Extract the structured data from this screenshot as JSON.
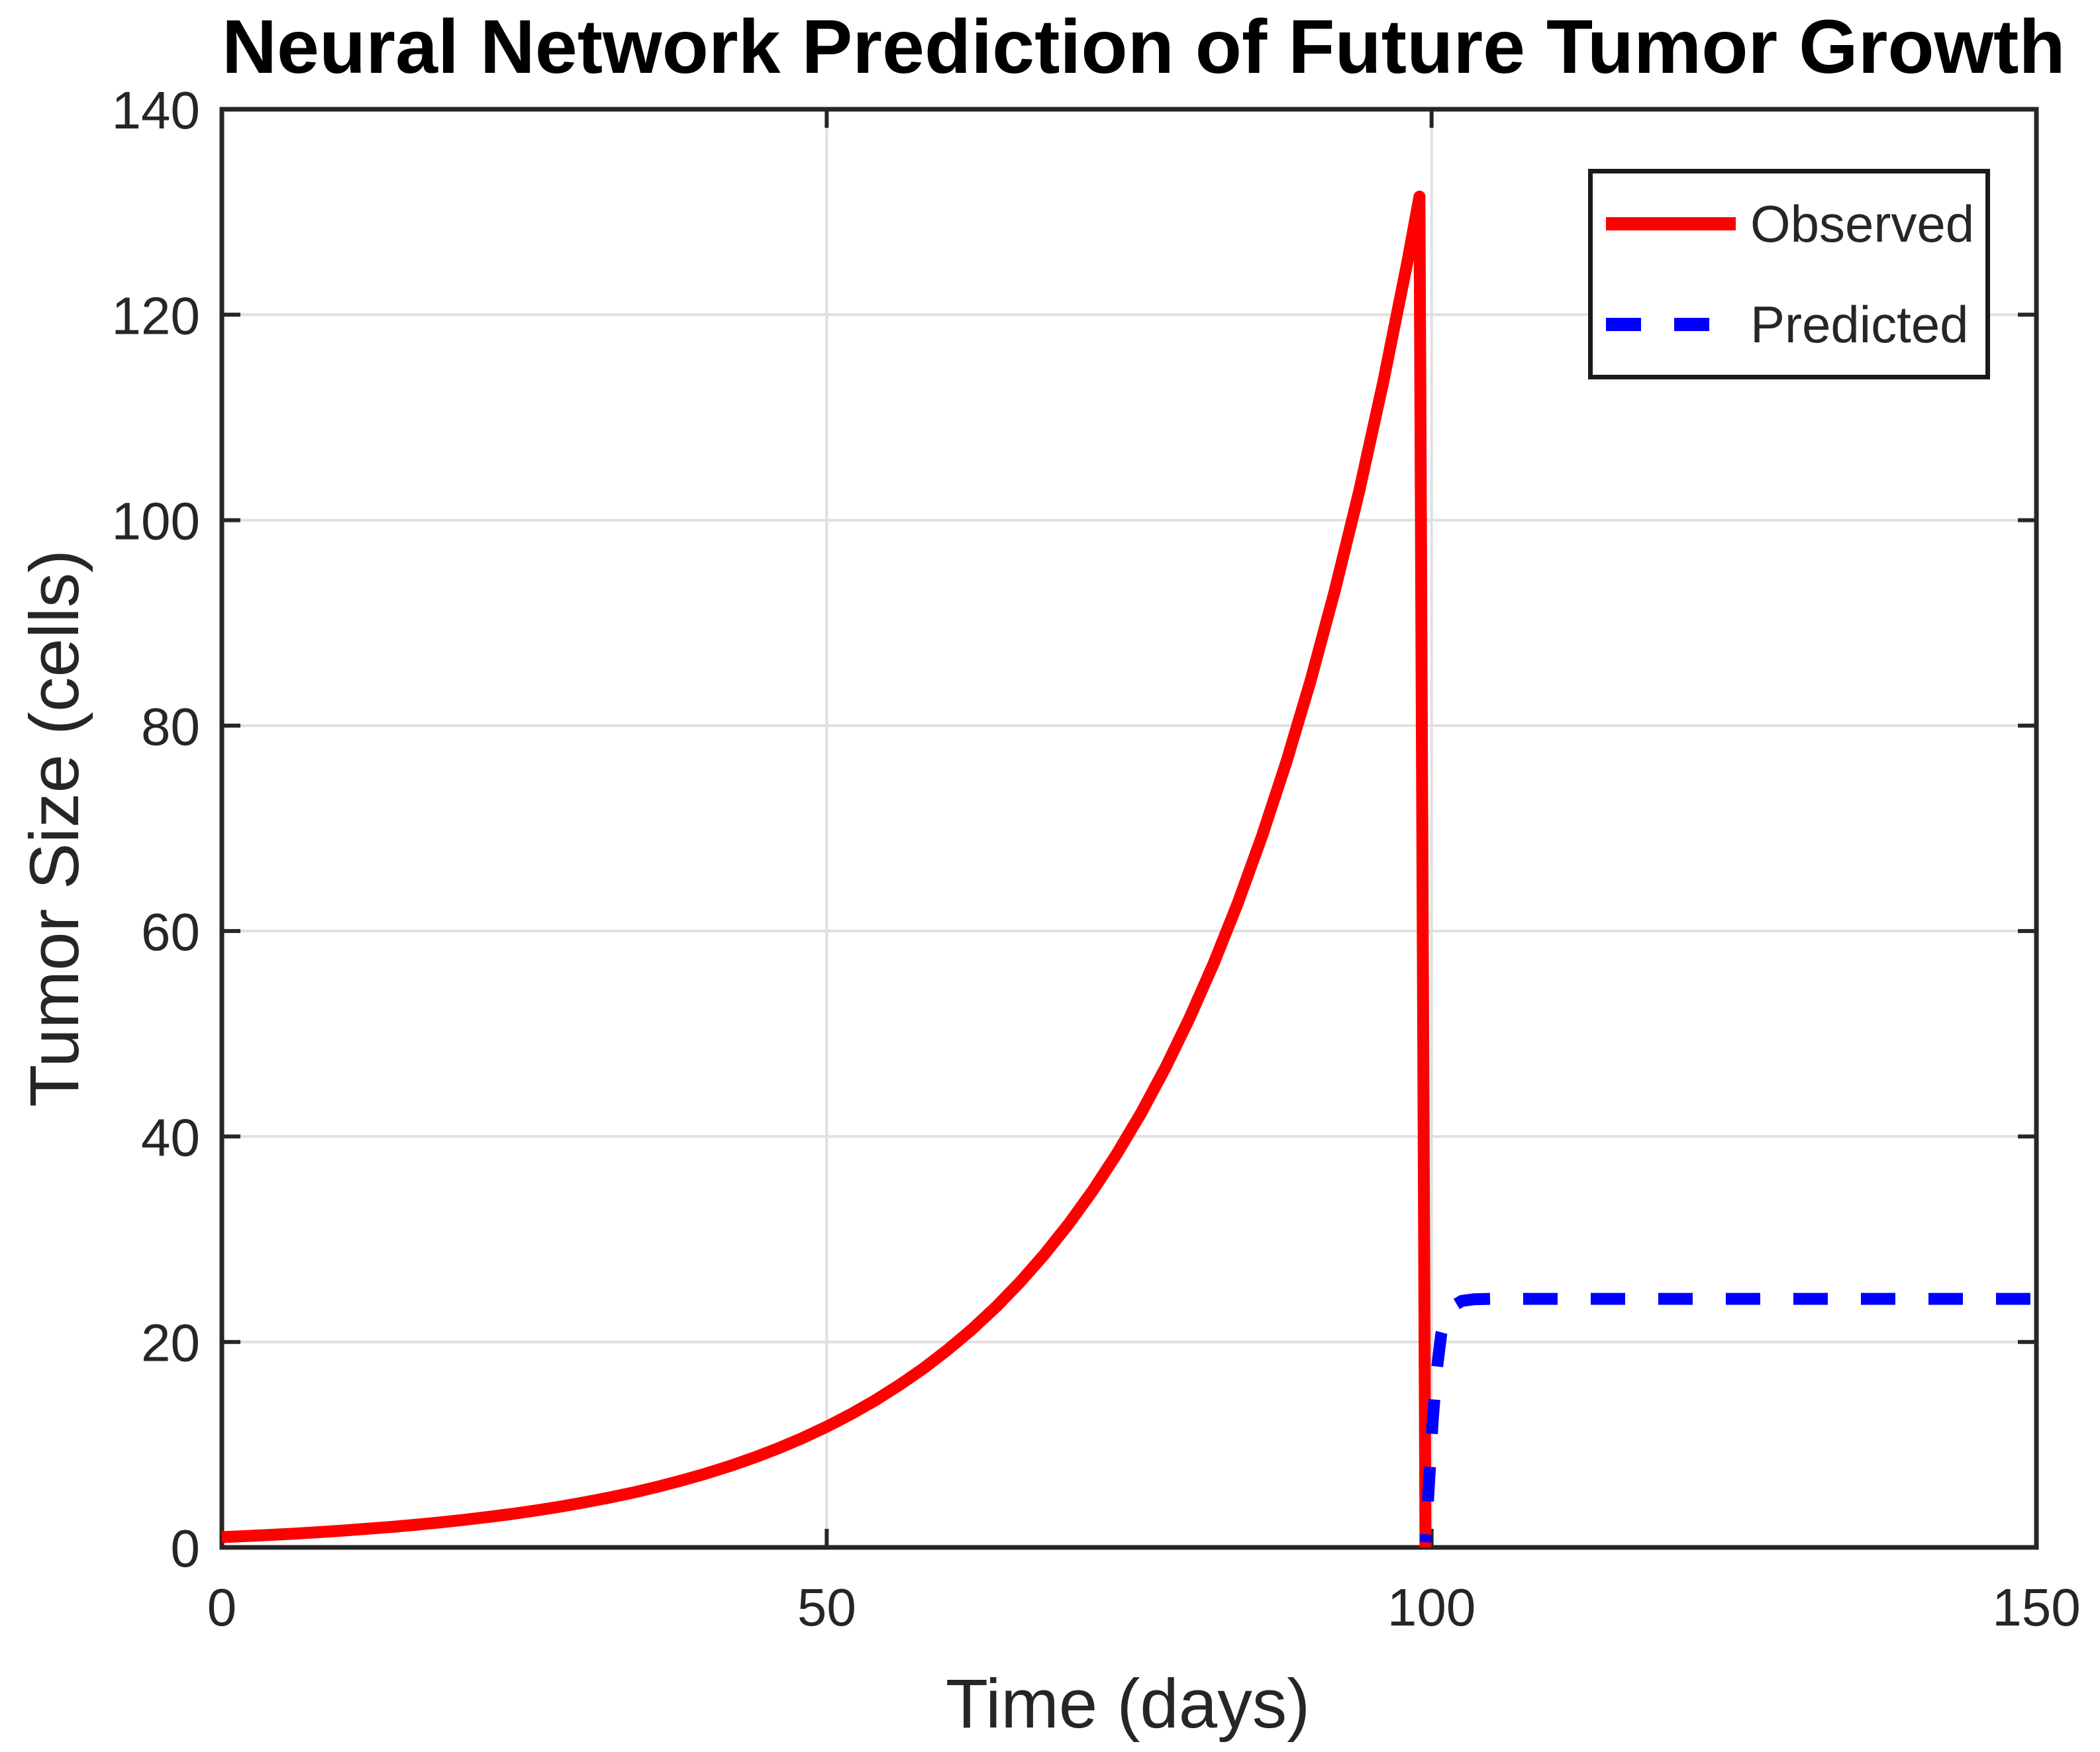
{
  "chart_data": {
    "type": "line",
    "title": "Neural Network Prediction of Future Tumor Growth",
    "xlabel": "Time (days)",
    "ylabel": "Tumor Size (cells)",
    "xlim": [
      0,
      150
    ],
    "ylim": [
      0,
      140
    ],
    "xticks": [
      0,
      50,
      100,
      150
    ],
    "yticks": [
      0,
      20,
      40,
      60,
      80,
      100,
      120,
      140
    ],
    "grid": true,
    "legend_position": "northeast",
    "colors": {
      "grid": "#E0E0E0",
      "axis": "#262626",
      "tick_text": "#262626",
      "title": "#000000",
      "legend_border": "#1A1A1A",
      "background": "#FFFFFF"
    },
    "series": [
      {
        "name": "Observed",
        "color": "#FF0000",
        "style": "solid",
        "line_width": 18,
        "points": [
          [
            0,
            1
          ],
          [
            2,
            1.1
          ],
          [
            4,
            1.22
          ],
          [
            6,
            1.34
          ],
          [
            8,
            1.48
          ],
          [
            10,
            1.64
          ],
          [
            12,
            1.81
          ],
          [
            14,
            1.99
          ],
          [
            16,
            2.2
          ],
          [
            18,
            2.43
          ],
          [
            20,
            2.68
          ],
          [
            22,
            2.96
          ],
          [
            24,
            3.26
          ],
          [
            26,
            3.6
          ],
          [
            28,
            3.97
          ],
          [
            30,
            4.39
          ],
          [
            32,
            4.84
          ],
          [
            34,
            5.34
          ],
          [
            36,
            5.9
          ],
          [
            38,
            6.51
          ],
          [
            40,
            7.18
          ],
          [
            42,
            7.92
          ],
          [
            44,
            8.74
          ],
          [
            46,
            9.65
          ],
          [
            48,
            10.65
          ],
          [
            50,
            11.75
          ],
          [
            52,
            12.97
          ],
          [
            54,
            14.31
          ],
          [
            56,
            15.8
          ],
          [
            58,
            17.43
          ],
          [
            60,
            19.24
          ],
          [
            62,
            21.22
          ],
          [
            64,
            23.42
          ],
          [
            66,
            25.85
          ],
          [
            68,
            28.53
          ],
          [
            70,
            31.49
          ],
          [
            72,
            34.74
          ],
          [
            74,
            38.34
          ],
          [
            76,
            42.31
          ],
          [
            78,
            46.7
          ],
          [
            80,
            51.54
          ],
          [
            82,
            56.88
          ],
          [
            84,
            62.78
          ],
          [
            86,
            69.29
          ],
          [
            88,
            76.47
          ],
          [
            90,
            84.37
          ],
          [
            92,
            93.13
          ],
          [
            94,
            102.74
          ],
          [
            96,
            113.41
          ],
          [
            98,
            125.11
          ],
          [
            99,
            131.5
          ],
          [
            99.5,
            0
          ]
        ]
      },
      {
        "name": "Predicted",
        "color": "#0000FF",
        "style": "dashed",
        "line_width": 18,
        "points": [
          [
            99.5,
            0.5
          ],
          [
            99.7,
            4.5
          ],
          [
            99.9,
            8.5
          ],
          [
            100.1,
            12.5
          ],
          [
            100.4,
            17
          ],
          [
            100.8,
            20.8
          ],
          [
            101.2,
            22.5
          ],
          [
            101.8,
            23.5
          ],
          [
            102.5,
            24
          ],
          [
            103.5,
            24.15
          ],
          [
            105,
            24.2
          ],
          [
            110,
            24.2
          ],
          [
            115,
            24.2
          ],
          [
            120,
            24.2
          ],
          [
            125,
            24.2
          ],
          [
            130,
            24.2
          ],
          [
            135,
            24.2
          ],
          [
            140,
            24.2
          ],
          [
            145,
            24.2
          ],
          [
            149.5,
            24.2
          ]
        ]
      }
    ]
  }
}
